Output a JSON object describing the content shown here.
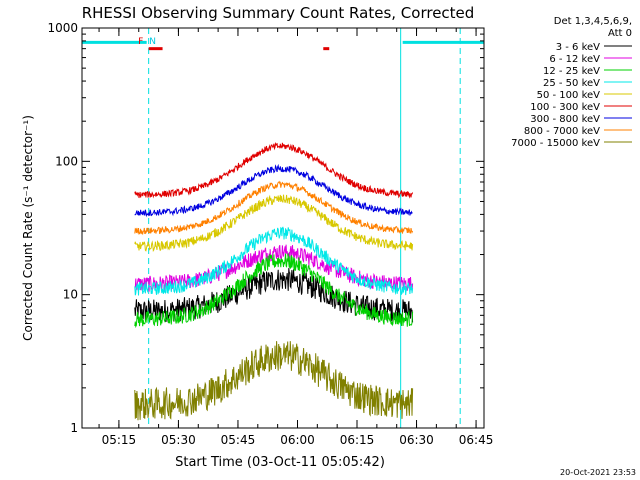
{
  "title": "RHESSI Observing Summary Count Rates, Corrected",
  "footer_timestamp": "20-Oct-2021 23:53",
  "chart_data": {
    "type": "line",
    "title": "RHESSI Observing Summary Count Rates, Corrected",
    "xlabel": "Start Time (03-Oct-11 05:05:42)",
    "ylabel": "Corrected Count Rate (s⁻¹ detector⁻¹)",
    "y_scale": "log",
    "ylim": [
      1,
      1000
    ],
    "xlim": [
      "05:05:42",
      "06:47:00"
    ],
    "y_ticks": [
      "1",
      "10",
      "100",
      "1000"
    ],
    "x_ticks": [
      "05:15",
      "05:30",
      "05:45",
      "06:00",
      "06:15",
      "06:30",
      "06:45"
    ],
    "grid": false,
    "legend_position": "right",
    "legend_header": [
      "Det 1,3,4,5,6,9,",
      "Att 0"
    ],
    "data_window": [
      "05:19:00",
      "06:29:00"
    ],
    "peak_time": "05:56",
    "series": [
      {
        "name": "3 - 6 keV",
        "color": "#000000",
        "base": 7.5,
        "peak": 13,
        "noise": 0.09
      },
      {
        "name": "6 - 12 keV",
        "color": "#e000e0",
        "base": 12,
        "peak": 21,
        "noise": 0.06
      },
      {
        "name": "12 - 25 keV",
        "color": "#00d000",
        "base": 6.5,
        "peak": 18,
        "noise": 0.06
      },
      {
        "name": "25 - 50 keV",
        "color": "#00e8e8",
        "base": 11,
        "peak": 29,
        "noise": 0.05
      },
      {
        "name": "50 - 100 keV",
        "color": "#d8c800",
        "base": 23,
        "peak": 52,
        "noise": 0.035
      },
      {
        "name": "100 - 300 keV",
        "color": "#e00000",
        "base": 56,
        "peak": 130,
        "noise": 0.025
      },
      {
        "name": "300 - 800 keV",
        "color": "#0000e0",
        "base": 41,
        "peak": 88,
        "noise": 0.025
      },
      {
        "name": "800 - 7000 keV",
        "color": "#ff8000",
        "base": 30,
        "peak": 67,
        "noise": 0.025
      },
      {
        "name": "7000 - 15000 keV",
        "color": "#808000",
        "base": 1.5,
        "peak": 3.5,
        "noise": 0.12
      }
    ],
    "flag_segments": [
      {
        "color": "#00e0e0",
        "y": 780,
        "from": "05:05:42",
        "to": "05:22:00"
      },
      {
        "color": "#00e0e0",
        "y": 780,
        "from": "06:26:30",
        "to": "06:47:00"
      },
      {
        "color": "#e00000",
        "y": 700,
        "from": "05:22:30",
        "to": "05:26:00"
      },
      {
        "color": "#e00000",
        "y": 700,
        "from": "06:06:30",
        "to": "06:08:00"
      }
    ],
    "markers": [
      {
        "label": "F",
        "time": "05:20:30",
        "color": "#e00000"
      },
      {
        "label": "N",
        "time": "05:23:30",
        "color": "#00c8e0"
      }
    ],
    "vertical_lines": [
      {
        "time": "05:22:30",
        "style": "dashed",
        "color": "#00e0e0"
      },
      {
        "time": "06:26:00",
        "style": "solid",
        "color": "#00e0e0"
      },
      {
        "time": "06:41:00",
        "style": "dashed",
        "color": "#00e0e0"
      }
    ]
  }
}
